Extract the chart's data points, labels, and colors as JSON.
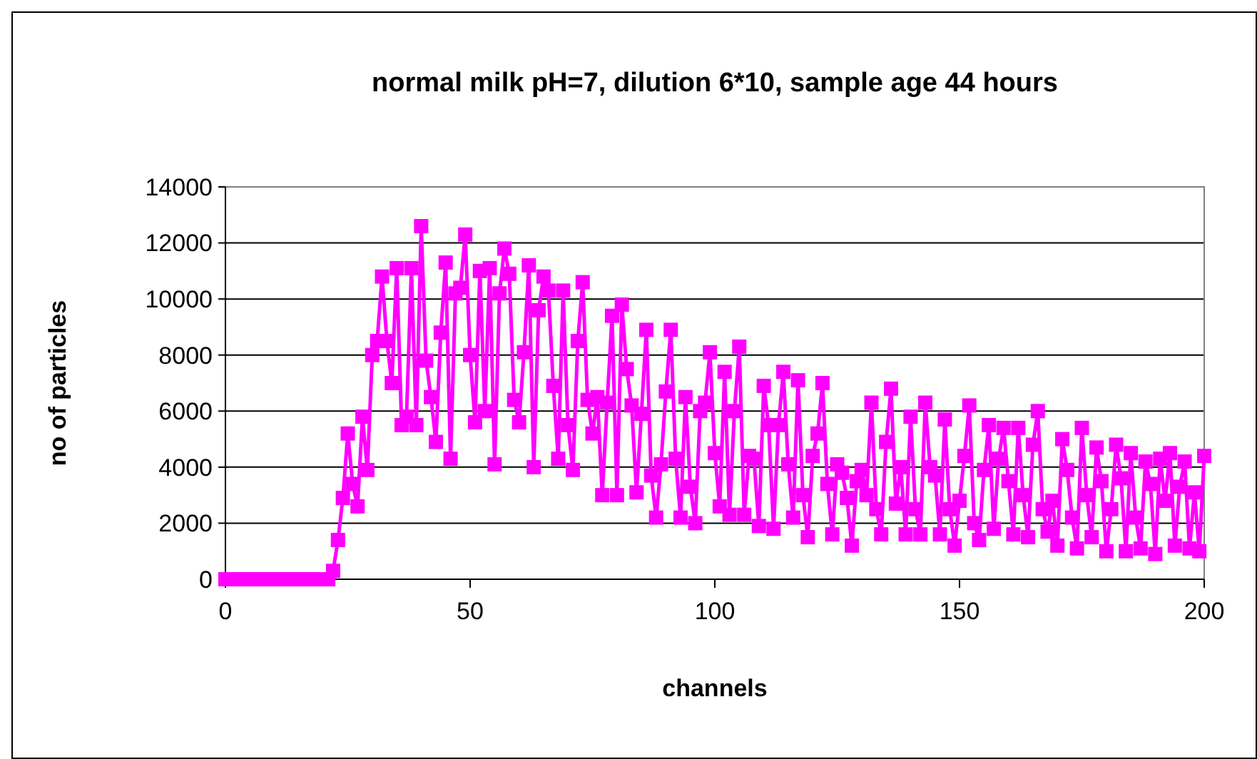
{
  "chart_data": {
    "type": "line",
    "title": "normal milk pH=7, dilution 6*10, sample age 44 hours",
    "xlabel": "channels",
    "ylabel": "no of particles",
    "xlim": [
      0,
      200
    ],
    "xticks": [
      0,
      50,
      100,
      150,
      200
    ],
    "ylim": [
      0,
      14000
    ],
    "yticks": [
      0,
      2000,
      4000,
      6000,
      8000,
      10000,
      12000,
      14000
    ],
    "grid": "y",
    "marker": "square",
    "line_style": "solid",
    "x": [
      0,
      1,
      2,
      3,
      4,
      5,
      6,
      7,
      8,
      9,
      10,
      11,
      12,
      13,
      14,
      15,
      16,
      17,
      18,
      19,
      20,
      21,
      22,
      23,
      24,
      25,
      26,
      27,
      28,
      29,
      30,
      31,
      32,
      33,
      34,
      35,
      36,
      37,
      38,
      39,
      40,
      41,
      42,
      43,
      44,
      45,
      46,
      47,
      48,
      49,
      50,
      51,
      52,
      53,
      54,
      55,
      56,
      57,
      58,
      59,
      60,
      61,
      62,
      63,
      64,
      65,
      66,
      67,
      68,
      69,
      70,
      71,
      72,
      73,
      74,
      75,
      76,
      77,
      78,
      79,
      80,
      81,
      82,
      83,
      84,
      85,
      86,
      87,
      88,
      89,
      90,
      91,
      92,
      93,
      94,
      95,
      96,
      97,
      98,
      99,
      100,
      101,
      102,
      103,
      104,
      105,
      106,
      107,
      108,
      109,
      110,
      111,
      112,
      113,
      114,
      115,
      116,
      117,
      118,
      119,
      120,
      121,
      122,
      123,
      124,
      125,
      126,
      127,
      128,
      129,
      130,
      131,
      132,
      133,
      134,
      135,
      136,
      137,
      138,
      139,
      140,
      141,
      142,
      143,
      144,
      145,
      146,
      147,
      148,
      149,
      150,
      151,
      152,
      153,
      154,
      155,
      156,
      157,
      158,
      159,
      160,
      161,
      162,
      163,
      164,
      165,
      166,
      167,
      168,
      169,
      170,
      171,
      172,
      173,
      174,
      175,
      176,
      177,
      178,
      179,
      180,
      181,
      182,
      183,
      184,
      185,
      186,
      187,
      188,
      189,
      190,
      191,
      192,
      193,
      194,
      195,
      196,
      197,
      198,
      199,
      200
    ],
    "series": [
      {
        "color": "#ff00ff",
        "values": [
          0,
          0,
          0,
          0,
          0,
          0,
          0,
          0,
          0,
          0,
          0,
          0,
          0,
          0,
          0,
          0,
          0,
          0,
          0,
          0,
          0,
          0,
          300,
          1400,
          2900,
          5200,
          3400,
          2600,
          5800,
          3900,
          8000,
          8500,
          10800,
          8500,
          7000,
          11100,
          5500,
          5800,
          11100,
          5500,
          12600,
          7800,
          6500,
          4900,
          8800,
          11300,
          4300,
          10200,
          10400,
          12300,
          8000,
          5600,
          11000,
          6000,
          11100,
          4100,
          10200,
          11800,
          10900,
          6400,
          5600,
          8100,
          11200,
          4000,
          9600,
          10800,
          10300,
          6900,
          4300,
          10300,
          5500,
          3900,
          8500,
          10600,
          6400,
          5200,
          6500,
          3000,
          6300,
          9400,
          3000,
          9800,
          7500,
          6200,
          3100,
          5900,
          8900,
          3700,
          2200,
          4100,
          6700,
          8900,
          4300,
          2200,
          6500,
          3300,
          2000,
          6000,
          6300,
          8100,
          4500,
          2600,
          7400,
          2300,
          6000,
          8300,
          2300,
          4400,
          4300,
          1900,
          6900,
          5500,
          1800,
          5500,
          7400,
          4100,
          2200,
          7100,
          3000,
          1500,
          4400,
          5200,
          7000,
          3400,
          1600,
          4100,
          3800,
          2900,
          1200,
          3500,
          3900,
          3000,
          6300,
          2500,
          1600,
          4900,
          6800,
          2700,
          4000,
          1600,
          5800,
          2500,
          1600,
          6300,
          4000,
          3700,
          1600,
          5700,
          2500,
          1200,
          2800,
          4400,
          6200,
          2000,
          1400,
          3900,
          5500,
          1800,
          4300,
          5400,
          3500,
          1600,
          5400,
          3000,
          1500,
          4800,
          6000,
          2500,
          1700,
          2800,
          1200,
          5000,
          3900,
          2200,
          1100,
          5400,
          3000,
          1500,
          4700,
          3500,
          1000,
          2500,
          4800,
          3600,
          1000,
          4500,
          2200,
          1100,
          4200,
          3400,
          900,
          4300,
          2800,
          4500,
          1200,
          3300,
          4200,
          1100,
          3100,
          1000,
          4400
        ]
      }
    ]
  }
}
